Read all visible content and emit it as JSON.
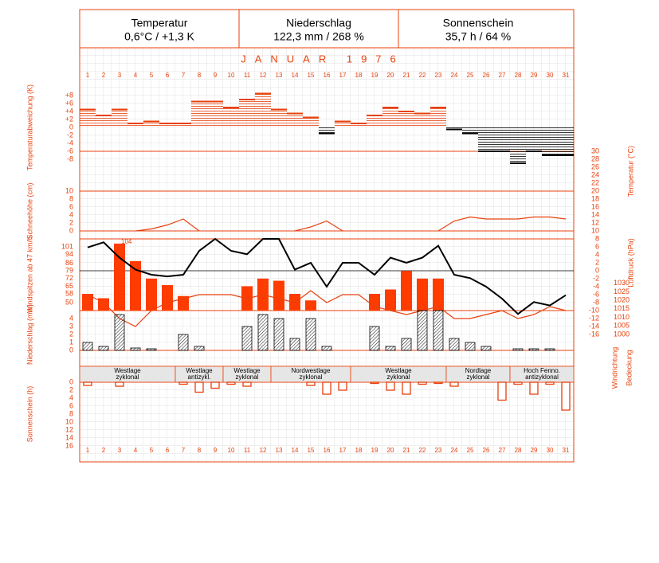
{
  "header": {
    "cells": [
      {
        "title": "Temperatur",
        "value": "0,6°C / +1,3 K"
      },
      {
        "title": "Niederschlag",
        "value": "122,3 mm / 268 %"
      },
      {
        "title": "Sonnenschein",
        "value": "35,7 h / 64 %"
      }
    ]
  },
  "month_title": "JANUAR 1976",
  "days": [
    1,
    2,
    3,
    4,
    5,
    6,
    7,
    8,
    9,
    10,
    11,
    12,
    13,
    14,
    15,
    16,
    17,
    18,
    19,
    20,
    21,
    22,
    23,
    24,
    25,
    26,
    27,
    28,
    29,
    30,
    31
  ],
  "extra_labels": [
    "Windrichtung",
    "Bedeckung"
  ],
  "chart_data": [
    {
      "type": "step",
      "title": "Temperaturabweichung (K)",
      "color_positive": "#e8400c",
      "color_negative": "#000000",
      "values": [
        4.5,
        3,
        4.5,
        1,
        1.5,
        1,
        1,
        6.5,
        6.5,
        5,
        7,
        8.5,
        4.5,
        3.5,
        2.5,
        -1.5,
        1.5,
        1,
        3,
        5,
        4,
        3.5,
        5,
        -0.5,
        -1.5,
        -6,
        -6,
        -9,
        -6,
        -7,
        -7
      ],
      "ylim": [
        -10,
        10
      ],
      "yticks": [
        {
          "value": 8,
          "label": "+8"
        },
        {
          "value": 6,
          "label": "+6"
        },
        {
          "value": 4,
          "label": "+4"
        },
        {
          "value": 2,
          "label": "+2"
        },
        0,
        -2,
        -4,
        -6,
        -8
      ]
    },
    {
      "type": "line",
      "title": "Schneehöhe (cm)",
      "color": "#e8400c",
      "values": [
        null,
        null,
        null,
        0,
        0.5,
        1.5,
        3,
        0,
        null,
        null,
        null,
        null,
        null,
        0,
        1,
        2.5,
        0,
        null,
        null,
        null,
        null,
        null,
        0,
        2.5,
        3.5,
        3,
        3,
        3,
        3.5,
        3.5,
        3
      ],
      "ylim": [
        0,
        10
      ],
      "yticks": [
        10,
        8,
        6,
        4,
        2,
        0
      ]
    },
    {
      "type": "bar",
      "title": "Windspitzen ab 47 km/h",
      "color": "#ff3c00",
      "values": [
        58,
        54,
        104,
        88,
        72,
        66,
        56,
        null,
        null,
        null,
        65,
        72,
        70,
        58,
        52,
        null,
        null,
        null,
        58,
        62,
        79,
        72,
        72,
        null,
        null,
        null,
        null,
        null,
        null,
        null,
        null
      ],
      "ylim": [
        42.7,
        108.3
      ],
      "yticks": [
        101,
        94,
        86,
        79,
        72,
        65,
        58,
        50
      ]
    },
    {
      "type": "line",
      "title": "Luftdruck (hPa)",
      "color": "#000000",
      "axis": "right",
      "values": [
        1051,
        1054,
        1045,
        1038,
        1035,
        1034,
        1035,
        1049,
        1056,
        1049,
        1047,
        1056,
        1056,
        1038,
        1042,
        1028,
        1042,
        1042,
        1035,
        1045,
        1042,
        1045,
        1052,
        1035,
        1033,
        1028,
        1021,
        1012,
        1019,
        1017,
        1023
      ],
      "ylim": [
        1000,
        1056
      ],
      "yticks": [
        1030,
        1025,
        1020,
        1015,
        1010,
        1005,
        1000
      ]
    },
    {
      "type": "line",
      "title": "Temperatur (°C)",
      "color": "#e8400c",
      "axis": "right",
      "values": [
        -6,
        -8,
        -12,
        -14,
        -10,
        -8,
        -7,
        -6,
        -6,
        -6,
        -7,
        -6,
        -7,
        -8,
        -5,
        -8,
        -6,
        -6,
        -9,
        -10,
        -11,
        -10,
        -9,
        -12,
        -12,
        -11,
        -10,
        -12,
        -11,
        -9,
        -10
      ],
      "ylim": [
        -16,
        30
      ],
      "yticks": [
        30,
        28,
        26,
        24,
        22,
        20,
        18,
        16,
        14,
        12,
        10,
        8,
        6,
        4,
        2,
        0,
        -2,
        -4,
        -6,
        -8,
        -10,
        -12,
        -14,
        -16
      ]
    },
    {
      "type": "hatched-bar",
      "title": "Niederschlag (mm)",
      "color": "#000000",
      "values": [
        1,
        0.5,
        4.5,
        0.3,
        0.2,
        0,
        2,
        0.5,
        0,
        0,
        3,
        4.5,
        4,
        1.5,
        4,
        0.5,
        0,
        0,
        3,
        0.5,
        1.5,
        5,
        5,
        1.5,
        1,
        0.5,
        0,
        0.2,
        0.2,
        0.2,
        0
      ],
      "ylim": [
        0,
        5
      ],
      "yticks": [
        4,
        3,
        2,
        1,
        0
      ]
    },
    {
      "type": "bands",
      "bands": [
        {
          "lines": [
            "Westlage",
            "zyklonal"
          ],
          "from": 1,
          "to": 6
        },
        {
          "lines": [
            "Westlage",
            "antizykl."
          ],
          "from": 7,
          "to": 9
        },
        {
          "lines": [
            "Westlage",
            "zyklonal"
          ],
          "from": 10,
          "to": 12
        },
        {
          "lines": [
            "Nordwestlage",
            "zyklonal"
          ],
          "from": 13,
          "to": 17
        },
        {
          "lines": [
            "Westlage",
            "zyklonal"
          ],
          "from": 18,
          "to": 23
        },
        {
          "lines": [
            "Nordlage",
            "zyklonal"
          ],
          "from": 24,
          "to": 27
        },
        {
          "lines": [
            "Hoch Fenno.",
            "antizyklonal"
          ],
          "from": 28,
          "to": 31
        }
      ]
    },
    {
      "type": "hanging-bar",
      "title": "Sonnenschein (h)",
      "color": "#e8400c",
      "values": [
        0.8,
        0,
        1,
        0,
        0,
        0,
        0.5,
        2.5,
        1.5,
        0.5,
        1,
        0,
        0,
        0,
        0.8,
        3,
        2,
        0,
        0.3,
        2,
        3,
        0.5,
        0.3,
        1,
        0,
        0,
        4.5,
        0.5,
        3,
        0.5,
        7
      ],
      "ylim": [
        0,
        16
      ],
      "yticks": [
        0,
        2,
        4,
        6,
        8,
        10,
        12,
        14,
        16
      ]
    }
  ]
}
